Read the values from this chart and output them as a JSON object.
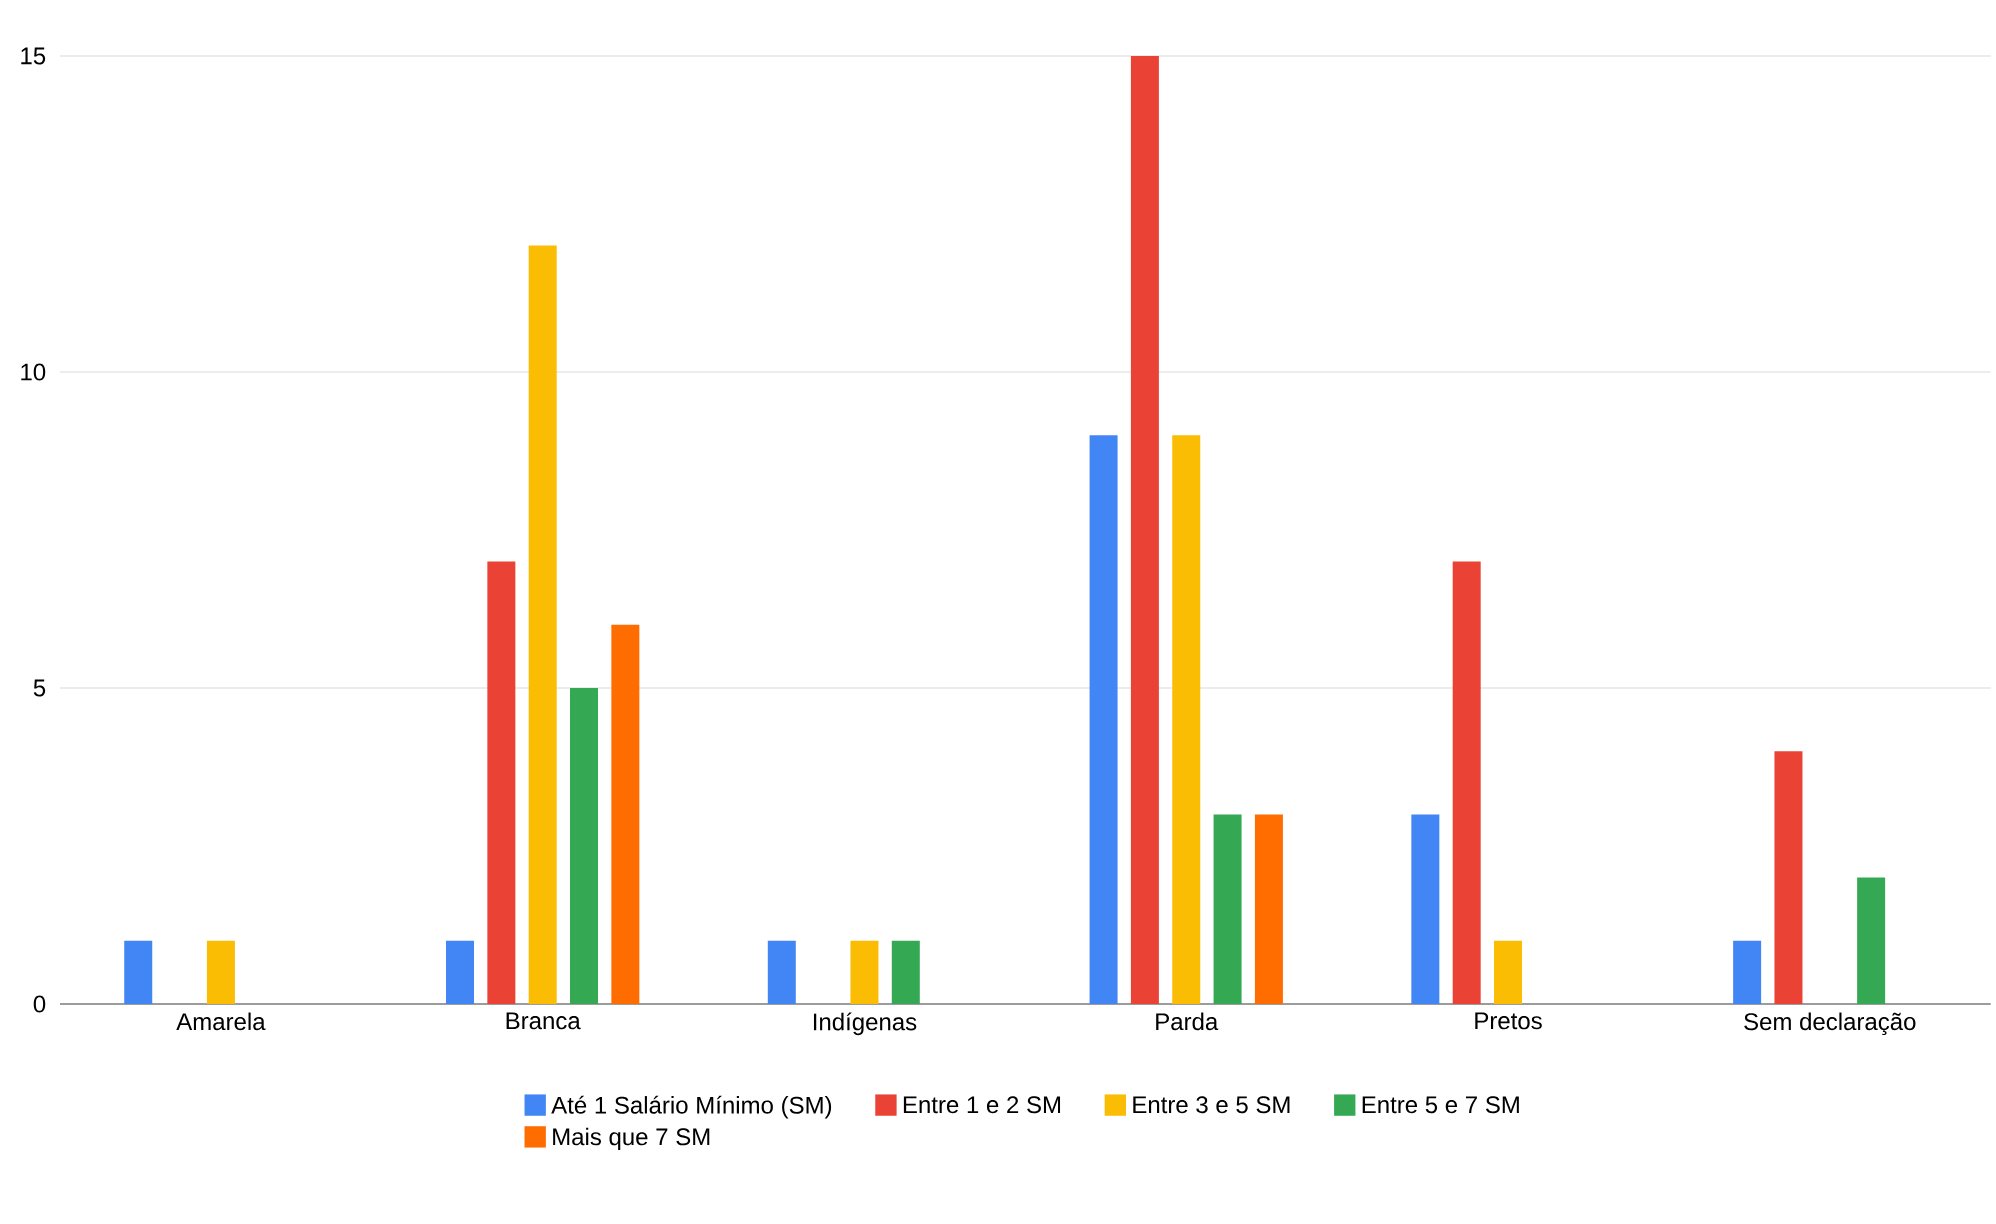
{
  "chart_data": {
    "type": "bar",
    "categories": [
      "Amarela",
      "Branca",
      "Indígenas",
      "Parda",
      "Pretos",
      "Sem declaração"
    ],
    "series": [
      {
        "name": "Até 1 Salário Mínimo (SM)",
        "color": "#4285f4",
        "values": [
          1,
          1,
          1,
          9,
          3,
          1
        ]
      },
      {
        "name": "Entre 1 e 2 SM",
        "color": "#ea4335",
        "values": [
          0,
          7,
          0,
          15,
          7,
          4
        ]
      },
      {
        "name": "Entre 3 e 5 SM",
        "color": "#fbbc04",
        "values": [
          1,
          12,
          1,
          9,
          1,
          0
        ]
      },
      {
        "name": "Entre 5 e 7 SM",
        "color": "#34a853",
        "values": [
          0,
          5,
          1,
          3,
          0,
          2
        ]
      },
      {
        "name": "Mais que 7 SM",
        "color": "#ff6d01",
        "values": [
          0,
          6,
          0,
          3,
          0,
          0
        ]
      }
    ],
    "ylim": [
      0,
      15
    ],
    "yticks": [
      0,
      5,
      10,
      15
    ],
    "grid": "y",
    "legend": "bottom"
  }
}
